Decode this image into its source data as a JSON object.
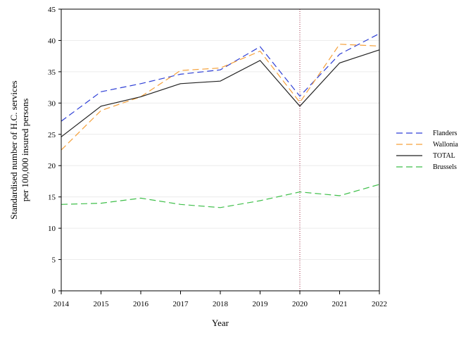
{
  "chart_data": {
    "type": "line",
    "xlabel": "Year",
    "ylabel": [
      "Standardised number of H.C. services",
      "per 100,000 insured persons"
    ],
    "x": [
      2014,
      2015,
      2016,
      2017,
      2018,
      2019,
      2020,
      2021,
      2022
    ],
    "xlim": [
      2014,
      2022
    ],
    "ylim": [
      0,
      45
    ],
    "y_ticks": [
      0,
      5,
      10,
      15,
      20,
      25,
      30,
      35,
      40,
      45
    ],
    "grid": "horizontal",
    "legend_placement": "right",
    "reference_line": {
      "x": 2020,
      "color": "#a0304a",
      "style": "dotted"
    },
    "series": [
      {
        "name": "Flanders",
        "color": "#2e3fd6",
        "style": "dashed",
        "values": [
          27.1,
          31.8,
          33.1,
          34.6,
          35.3,
          39.0,
          31.1,
          37.8,
          41.1
        ]
      },
      {
        "name": "Wallonia",
        "color": "#f5a03a",
        "style": "dashed",
        "values": [
          22.5,
          28.8,
          31.0,
          35.2,
          35.6,
          38.3,
          30.1,
          39.4,
          39.1
        ]
      },
      {
        "name": "TOTAL",
        "color": "#222222",
        "style": "solid",
        "values": [
          24.6,
          29.5,
          31.0,
          33.1,
          33.5,
          36.8,
          29.5,
          36.4,
          38.5
        ]
      },
      {
        "name": "Brussels",
        "color": "#3fbf4a",
        "style": "dashed",
        "values": [
          13.8,
          14.0,
          14.8,
          13.8,
          13.3,
          14.4,
          15.8,
          15.2,
          17.0
        ]
      }
    ]
  }
}
